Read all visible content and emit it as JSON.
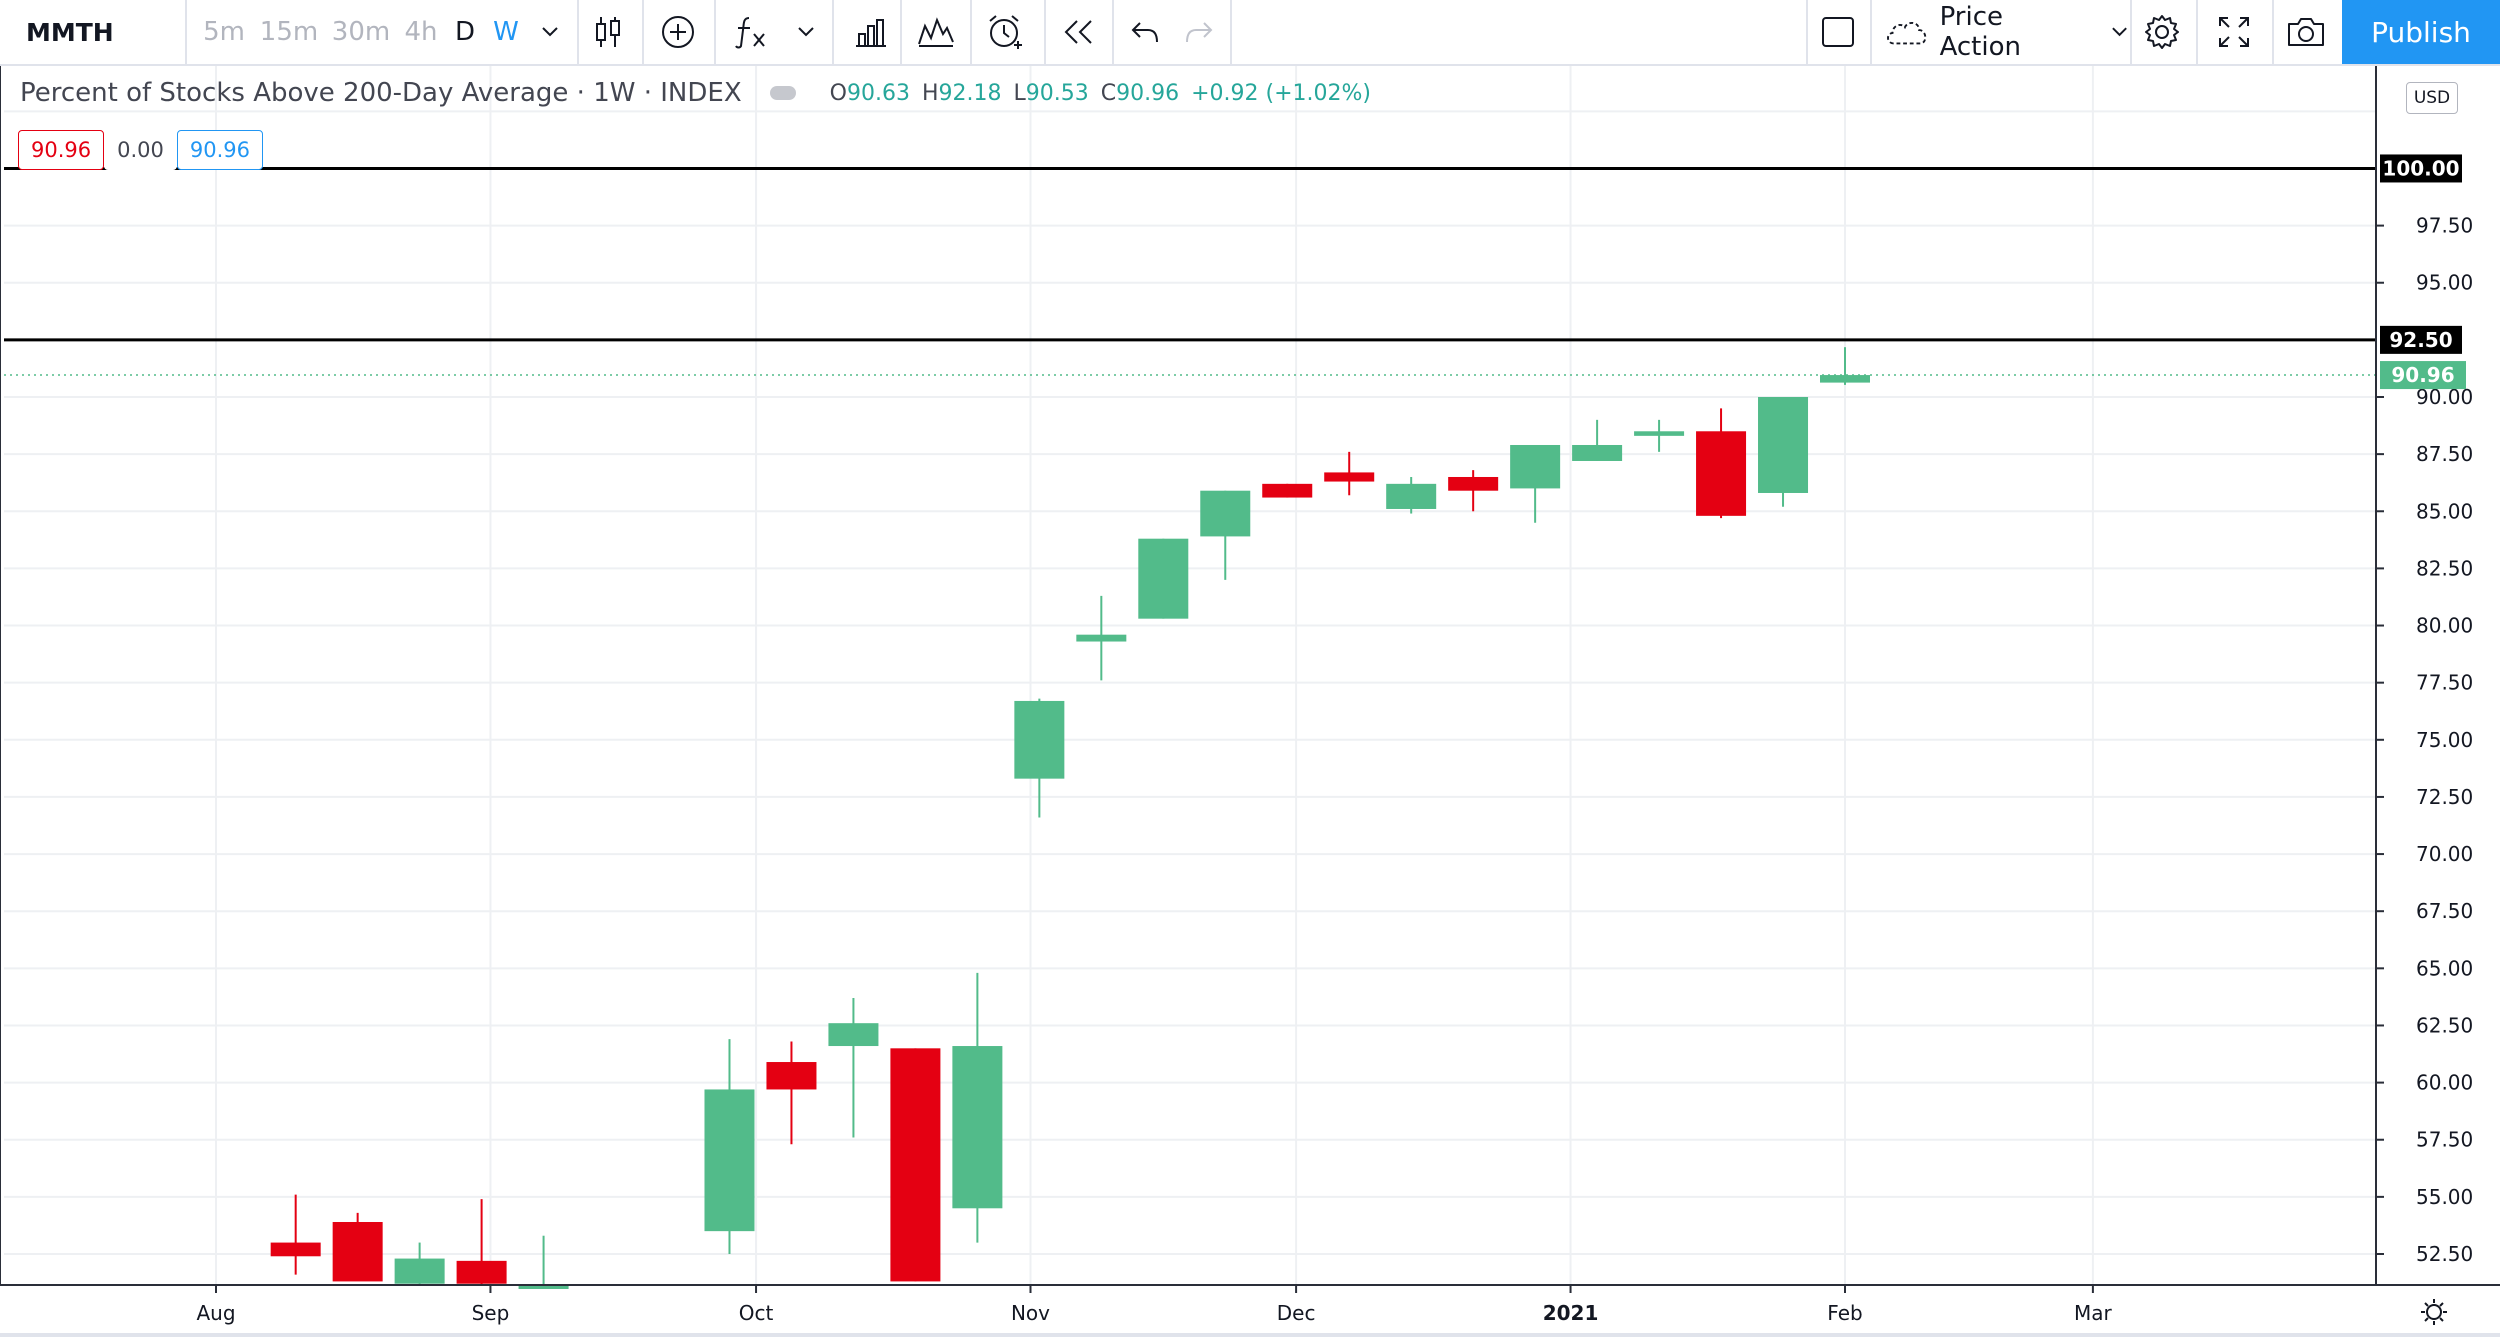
{
  "toolbar": {
    "symbol": "MMTH",
    "intervals": [
      "5m",
      "15m",
      "30m",
      "4h",
      "D",
      "W"
    ],
    "layout_name": "Price Action",
    "publish": "Publish",
    "icons": [
      "chevron-down-icon",
      "candles-icon",
      "compare-plus-icon",
      "indicators-fx-icon",
      "chevron-down-icon",
      "financials-bar-icon",
      "templates-icon",
      "alert-clock-icon",
      "replay-icon",
      "undo-icon",
      "redo-icon",
      "layout-square-icon",
      "cloud-icon",
      "chevron-down-icon",
      "settings-gear-icon",
      "fullscreen-icon",
      "camera-icon"
    ]
  },
  "legend": {
    "title": "Percent of Stocks Above 200-Day Average · 1W · INDEX",
    "open_key": "O",
    "open": "90.63",
    "high_key": "H",
    "high": "92.18",
    "low_key": "L",
    "low": "90.53",
    "close_key": "C",
    "close": "90.96",
    "change": "+0.92 (+1.02%)"
  },
  "price_boxes": {
    "sell": "90.96",
    "spread": "0.00",
    "buy": "90.96"
  },
  "currency": "USD",
  "colors": {
    "up": "#52bb8a",
    "down": "#e40012",
    "accent": "#2196f3",
    "last_price": "#52bb8a"
  },
  "chart_data": {
    "type": "candlestick",
    "title": "Percent of Stocks Above 200-Day Average",
    "timeframe": "1W",
    "exchange": "INDEX",
    "ylim": [
      51,
      104.5
    ],
    "y_ticks": [
      "52.50",
      "55.00",
      "57.50",
      "60.00",
      "62.50",
      "65.00",
      "67.50",
      "70.00",
      "72.50",
      "75.00",
      "77.50",
      "80.00",
      "82.50",
      "85.00",
      "87.50",
      "90.00",
      "95.00",
      "97.50"
    ],
    "x_ticks": [
      "Aug",
      "Sep",
      "Oct",
      "Nov",
      "Dec",
      "2021",
      "Feb",
      "Mar"
    ],
    "x_tick_dates": [
      "2020-08-01",
      "2020-09-01",
      "2020-10-01",
      "2020-11-01",
      "2020-12-01",
      "2021-01-01",
      "2021-02-01",
      "2021-03-01"
    ],
    "candles": [
      {
        "date": "2020-08-10",
        "open": 53.0,
        "high": 55.1,
        "low": 51.6,
        "close": 52.4
      },
      {
        "date": "2020-08-17",
        "open": 53.9,
        "high": 54.3,
        "low": 51.4,
        "close": 51.3
      },
      {
        "date": "2020-08-24",
        "open": 51.2,
        "high": 53.0,
        "low": 51.0,
        "close": 52.3
      },
      {
        "date": "2020-08-31",
        "open": 52.2,
        "high": 54.9,
        "low": 51.0,
        "close": 51.2
      },
      {
        "date": "2020-09-07",
        "open": 51.0,
        "high": 53.3,
        "low": 51.0,
        "close": 51.1
      },
      {
        "date": "2020-09-28",
        "open": 53.5,
        "high": 61.9,
        "low": 52.5,
        "close": 59.7
      },
      {
        "date": "2020-10-05",
        "open": 60.9,
        "high": 61.8,
        "low": 57.3,
        "close": 59.7
      },
      {
        "date": "2020-10-12",
        "open": 61.6,
        "high": 63.7,
        "low": 57.6,
        "close": 62.6
      },
      {
        "date": "2020-10-19",
        "open": 61.5,
        "high": 61.5,
        "low": 51.3,
        "close": 51.3
      },
      {
        "date": "2020-10-26",
        "open": 54.5,
        "high": 64.8,
        "low": 53.0,
        "close": 61.6
      },
      {
        "date": "2020-11-02",
        "open": 73.3,
        "high": 76.8,
        "low": 71.6,
        "close": 76.7
      },
      {
        "date": "2020-11-09",
        "open": 79.3,
        "high": 81.3,
        "low": 77.6,
        "close": 79.6
      },
      {
        "date": "2020-11-16",
        "open": 80.3,
        "high": 83.8,
        "low": 80.3,
        "close": 83.8
      },
      {
        "date": "2020-11-23",
        "open": 83.9,
        "high": 85.9,
        "low": 82.0,
        "close": 85.9
      },
      {
        "date": "2020-11-30",
        "open": 86.2,
        "high": 86.2,
        "low": 85.6,
        "close": 85.6
      },
      {
        "date": "2020-12-07",
        "open": 86.7,
        "high": 87.6,
        "low": 85.7,
        "close": 86.3
      },
      {
        "date": "2020-12-14",
        "open": 85.1,
        "high": 86.5,
        "low": 84.9,
        "close": 86.2
      },
      {
        "date": "2020-12-21",
        "open": 86.5,
        "high": 86.8,
        "low": 85.0,
        "close": 85.9
      },
      {
        "date": "2020-12-28",
        "open": 86.0,
        "high": 87.9,
        "low": 84.5,
        "close": 87.9
      },
      {
        "date": "2021-01-04",
        "open": 87.2,
        "high": 89.0,
        "low": 87.2,
        "close": 87.9
      },
      {
        "date": "2021-01-11",
        "open": 88.3,
        "high": 89.0,
        "low": 87.6,
        "close": 88.5
      },
      {
        "date": "2021-01-18",
        "open": 88.5,
        "high": 89.5,
        "low": 84.7,
        "close": 84.8
      },
      {
        "date": "2021-01-25",
        "open": 85.8,
        "high": 90.0,
        "low": 85.2,
        "close": 90.0
      },
      {
        "date": "2021-02-01",
        "open": 90.63,
        "high": 92.18,
        "low": 90.53,
        "close": 90.96
      }
    ],
    "horizontal_lines": [
      {
        "value": 100.0,
        "label": "100.00"
      },
      {
        "value": 92.5,
        "label": "92.50"
      }
    ],
    "last_price": {
      "value": 90.96,
      "label": "90.96"
    },
    "grid": true
  }
}
